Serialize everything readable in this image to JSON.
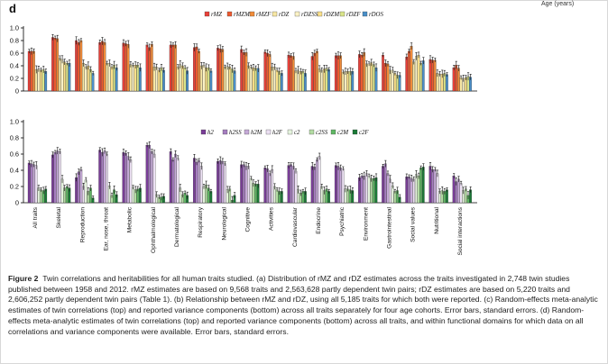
{
  "top_label": "Age (years)",
  "panel_label": "d",
  "caption": {
    "head": "Figure 2",
    "text": "Twin correlations and heritabilities for all human traits studied. (a) Distribution of rMZ and rDZ estimates across the traits investigated in 2,748 twin studies published between 1958 and 2012. rMZ estimates are based on 9,568 traits and 2,563,628 partly dependent twin pairs; rDZ estimates are based on 5,220 traits and 2,606,252 partly dependent twin pairs (Table 1). (b) Relationship between rMZ and rDZ, using all 5,185 traits for which both were reported. (c) Random-effects meta-analytic estimates of twin correlations (top) and reported variance components (bottom) across all traits separately for four age cohorts. Error bars, standard errors. (d) Random-effects meta-analytic estimates of twin correlations (top) and reported variance components (bottom) across all traits, and within functional domains for which data on all correlations and variance components were available. Error bars, standard errors."
  },
  "colors": {
    "top": [
      "#e8413a",
      "#ec5a30",
      "#f18c3a",
      "#f7e7a4",
      "#fbf2c6",
      "#fae08a",
      "#d9e48a",
      "#4a8fc8"
    ],
    "bottom": [
      "#7a3e98",
      "#a67dc0",
      "#c6aad8",
      "#ece0f3",
      "#e5f3dd",
      "#b4dca4",
      "#61b865",
      "#1b7a37"
    ],
    "axis": "#000000"
  },
  "chart_data": [
    {
      "type": "bar",
      "title": "Twin correlations",
      "ylim": [
        0,
        1
      ],
      "yticks": [
        "0",
        "0.2",
        "0.4",
        "0.6",
        "0.8",
        "1.0"
      ],
      "legend": [
        "rMZ",
        "rMZM",
        "rMZF",
        "rDZ",
        "rDZSS",
        "rDZM",
        "rDZF",
        "rDOS"
      ],
      "legend_position": "top-right",
      "categories": [
        "All traits",
        "Skeletal",
        "Reproduction",
        "Ear, nose, throat",
        "Metabolic",
        "Ophthalmological",
        "Dermatological",
        "Respiratory",
        "Neurological",
        "Cognitive",
        "Activities",
        "Cardiovascular",
        "Endocrine",
        "Psychiatric",
        "Environment",
        "Gastrointestinal",
        "Social values",
        "Nutritional",
        "Social interactions"
      ],
      "series": [
        {
          "name": "rMZ",
          "values": [
            0.63,
            0.85,
            0.8,
            0.77,
            0.76,
            0.73,
            0.73,
            0.69,
            0.68,
            0.66,
            0.62,
            0.57,
            0.55,
            0.56,
            0.58,
            0.57,
            0.54,
            0.5,
            0.37
          ]
        },
        {
          "name": "rMZM",
          "values": [
            0.63,
            0.84,
            0.77,
            0.79,
            0.75,
            0.69,
            0.73,
            0.7,
            0.67,
            0.61,
            0.6,
            0.56,
            0.6,
            0.56,
            0.57,
            0.44,
            0.63,
            0.49,
            0.41
          ]
        },
        {
          "name": "rMZF",
          "values": [
            0.63,
            0.83,
            0.8,
            0.77,
            0.74,
            0.74,
            0.73,
            0.63,
            0.66,
            0.61,
            0.58,
            0.55,
            0.63,
            0.56,
            0.61,
            0.43,
            0.71,
            0.49,
            0.36
          ]
        },
        {
          "name": "rDZ",
          "values": [
            0.34,
            0.52,
            0.44,
            0.44,
            0.42,
            0.38,
            0.38,
            0.4,
            0.38,
            0.4,
            0.38,
            0.32,
            0.35,
            0.3,
            0.43,
            0.33,
            0.46,
            0.28,
            0.21
          ]
        },
        {
          "name": "rDZSS",
          "values": [
            0.35,
            0.5,
            0.38,
            0.44,
            0.41,
            0.38,
            0.42,
            0.41,
            0.39,
            0.38,
            0.38,
            0.33,
            0.33,
            0.31,
            0.43,
            0.33,
            0.55,
            0.27,
            0.2
          ]
        },
        {
          "name": "rDZM",
          "values": [
            0.33,
            0.46,
            0.4,
            0.38,
            0.41,
            0.33,
            0.4,
            0.37,
            0.38,
            0.37,
            0.33,
            0.31,
            0.35,
            0.31,
            0.45,
            0.28,
            0.57,
            0.27,
            0.21
          ]
        },
        {
          "name": "rDZF",
          "values": [
            0.34,
            0.44,
            0.34,
            0.41,
            0.41,
            0.37,
            0.37,
            0.37,
            0.35,
            0.36,
            0.31,
            0.31,
            0.36,
            0.31,
            0.42,
            0.25,
            0.44,
            0.28,
            0.23
          ]
        },
        {
          "name": "rDOS",
          "values": [
            0.31,
            0.44,
            0.28,
            0.37,
            0.37,
            0.33,
            0.32,
            0.32,
            0.32,
            0.36,
            0.28,
            0.28,
            0.34,
            0.31,
            0.37,
            0.25,
            0.48,
            0.26,
            0.22
          ]
        }
      ]
    },
    {
      "type": "bar",
      "title": "Variance components",
      "ylim": [
        0,
        1
      ],
      "yticks": [
        "0",
        "0.2",
        "0.4",
        "0.6",
        "0.8",
        "1.0"
      ],
      "legend": [
        "h2",
        "h2SS",
        "h2M",
        "h2F",
        "c2",
        "c2SS",
        "c2M",
        "c2F"
      ],
      "legend_position": "top-right",
      "categories": [
        "All traits",
        "Skeletal",
        "Reproduction",
        "Ear, nose, throat",
        "Metabolic",
        "Ophthalmological",
        "Dermatological",
        "Respiratory",
        "Neurological",
        "Cognitive",
        "Activities",
        "Cardiovascular",
        "Endocrine",
        "Psychiatric",
        "Environment",
        "Gastrointestinal",
        "Social values",
        "Nutritional",
        "Social interactions"
      ],
      "series": [
        {
          "name": "h2",
          "values": [
            0.49,
            0.59,
            0.31,
            0.65,
            0.62,
            0.71,
            0.63,
            0.55,
            0.51,
            0.47,
            0.43,
            0.46,
            0.45,
            0.46,
            0.31,
            0.45,
            0.32,
            0.45,
            0.33
          ]
        },
        {
          "name": "h2SS",
          "values": [
            0.48,
            0.62,
            0.38,
            0.62,
            0.61,
            0.71,
            0.53,
            0.5,
            0.52,
            0.47,
            0.42,
            0.47,
            0.44,
            0.45,
            0.33,
            0.48,
            0.32,
            0.41,
            0.26
          ]
        },
        {
          "name": "h2M",
          "values": [
            0.47,
            0.64,
            0.41,
            0.64,
            0.57,
            0.63,
            0.6,
            0.52,
            0.51,
            0.45,
            0.36,
            0.45,
            0.53,
            0.43,
            0.33,
            0.36,
            0.3,
            0.41,
            0.29
          ]
        },
        {
          "name": "h2F",
          "values": [
            0.46,
            0.63,
            0.2,
            0.6,
            0.53,
            0.6,
            0.55,
            0.45,
            0.48,
            0.45,
            0.41,
            0.39,
            0.57,
            0.42,
            0.36,
            0.29,
            0.29,
            0.36,
            0.24
          ]
        },
        {
          "name": "c2",
          "values": [
            0.18,
            0.29,
            0.28,
            0.21,
            0.19,
            0.1,
            0.18,
            0.2,
            0.16,
            0.3,
            0.2,
            0.16,
            0.2,
            0.17,
            0.33,
            0.21,
            0.35,
            0.14,
            0.15
          ]
        },
        {
          "name": "c2SS",
          "values": [
            0.16,
            0.18,
            0.14,
            0.09,
            0.16,
            0.07,
            0.1,
            0.22,
            0.17,
            0.24,
            0.16,
            0.12,
            0.15,
            0.17,
            0.3,
            0.14,
            0.33,
            0.15,
            0.17
          ]
        },
        {
          "name": "c2M",
          "values": [
            0.15,
            0.2,
            0.18,
            0.16,
            0.17,
            0.07,
            0.12,
            0.18,
            0.03,
            0.23,
            0.14,
            0.14,
            0.17,
            0.16,
            0.3,
            0.15,
            0.43,
            0.14,
            0.09
          ]
        },
        {
          "name": "c2F",
          "values": [
            0.17,
            0.18,
            0.06,
            0.1,
            0.18,
            0.08,
            0.09,
            0.14,
            0.09,
            0.23,
            0.14,
            0.14,
            0.14,
            0.15,
            0.31,
            0.07,
            0.44,
            0.16,
            0.16
          ]
        }
      ]
    }
  ]
}
